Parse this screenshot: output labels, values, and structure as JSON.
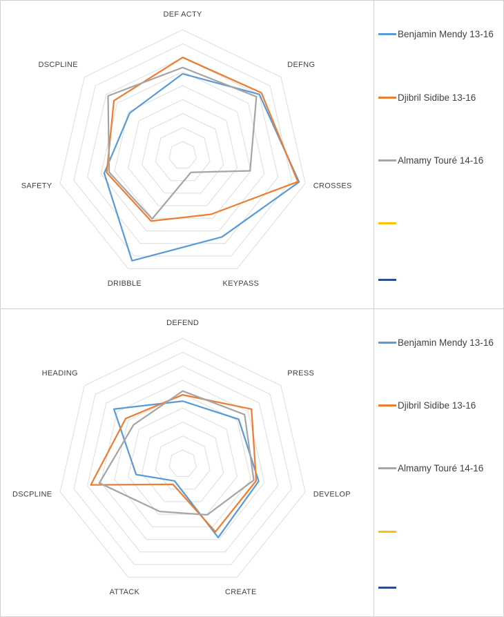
{
  "colors": {
    "grid": "#DCDCDC",
    "axis_label": "#404040",
    "border": "#CFCFCF",
    "series_palette": [
      "#5B9BD5",
      "#ED7D31",
      "#A5A5A5",
      "#FFC000",
      "#2E4D8E"
    ]
  },
  "legend": {
    "items": [
      {
        "label": "Benjamin Mendy 13-16",
        "color": "#5B9BD5"
      },
      {
        "label": "Djibril Sidibe 13-16",
        "color": "#ED7D31"
      },
      {
        "label": "Almamy Touré 14-16",
        "color": "#A5A5A5"
      },
      {
        "label": "",
        "color": "#FFC000"
      },
      {
        "label": "",
        "color": "#2E4D8E"
      }
    ]
  },
  "chart_data": [
    {
      "type": "radar",
      "title": "",
      "categories": [
        "DEF ACTY",
        "DEFNG",
        "CROSSES",
        "KEYPASS",
        "DRIBBLE",
        "SAFETY",
        "DSCPLINE"
      ],
      "series": [
        {
          "name": "Benjamin Mendy 13-16",
          "color": "#5B9BD5",
          "values": [
            65,
            78,
            95,
            72,
            93,
            64,
            54
          ]
        },
        {
          "name": "Djibril Sidibe 13-16",
          "color": "#ED7D31",
          "values": [
            78,
            80,
            94,
            52,
            58,
            62,
            70
          ]
        },
        {
          "name": "Almamy Touré 14-16",
          "color": "#A5A5A5",
          "values": [
            70,
            75,
            55,
            15,
            56,
            60,
            76
          ]
        }
      ],
      "rmax": 100,
      "grid_levels": 9,
      "grid": true,
      "legend_position": "right"
    },
    {
      "type": "radar",
      "title": "",
      "categories": [
        "DEFEND",
        "PRESS",
        "DEVELOP",
        "CREATE",
        "ATTACK",
        "DSCPLINE",
        "HEADING"
      ],
      "series": [
        {
          "name": "Benjamin Mendy 13-16",
          "color": "#5B9BD5",
          "values": [
            50,
            57,
            62,
            65,
            15,
            38,
            70
          ]
        },
        {
          "name": "Djibril Sidibe 13-16",
          "color": "#ED7D31",
          "values": [
            55,
            70,
            60,
            60,
            18,
            75,
            58
          ]
        },
        {
          "name": "Almamy Touré 14-16",
          "color": "#A5A5A5",
          "values": [
            58,
            63,
            58,
            45,
            42,
            68,
            50
          ]
        }
      ],
      "rmax": 100,
      "grid_levels": 9,
      "grid": true,
      "legend_position": "right"
    }
  ]
}
